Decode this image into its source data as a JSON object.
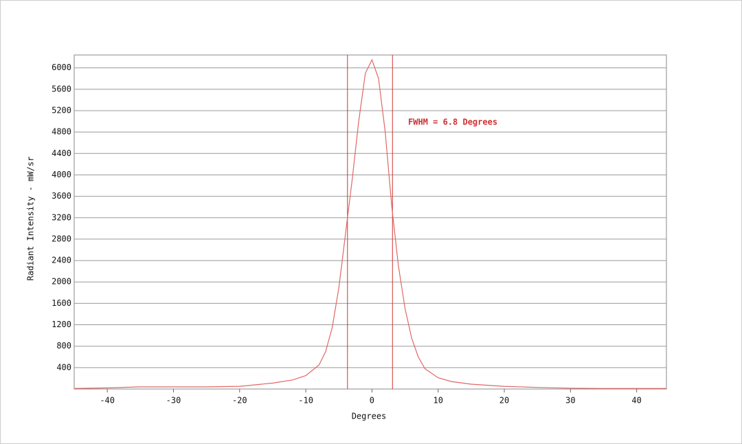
{
  "chart_data": {
    "type": "line",
    "x_label": "Degrees",
    "y_label": "Radiant Intensity - mW/sr",
    "annotation": "FWHM =  6.8 Degrees",
    "x": [
      -45,
      -40,
      -35,
      -30,
      -25,
      -20,
      -15,
      -12,
      -10,
      -8,
      -7,
      -6,
      -5,
      -4,
      -3,
      -2,
      -1,
      0,
      1,
      2,
      3,
      4,
      5,
      6,
      7,
      8,
      10,
      12,
      15,
      20,
      25,
      30,
      35,
      40,
      44.5
    ],
    "series": [
      {
        "color": "#e06666",
        "values": [
          10,
          20,
          40,
          40,
          40,
          50,
          110,
          170,
          250,
          450,
          700,
          1150,
          1900,
          2900,
          3900,
          5000,
          5900,
          6150,
          5800,
          4800,
          3400,
          2300,
          1500,
          950,
          600,
          380,
          210,
          140,
          90,
          50,
          30,
          15,
          10,
          10,
          10
        ]
      }
    ],
    "fwhm_lines": [
      -3.7,
      3.1
    ],
    "fwhm_color": "#d03030",
    "xlim": [
      -45,
      44.5
    ],
    "ylim": [
      0,
      6240
    ],
    "xticks": [
      -40,
      -30,
      -20,
      -10,
      0,
      10,
      20,
      30,
      40
    ],
    "yticks": [
      400,
      800,
      1200,
      1600,
      2000,
      2400,
      2800,
      3200,
      3600,
      4000,
      4400,
      4800,
      5200,
      5600,
      6000
    ],
    "grid": true
  }
}
